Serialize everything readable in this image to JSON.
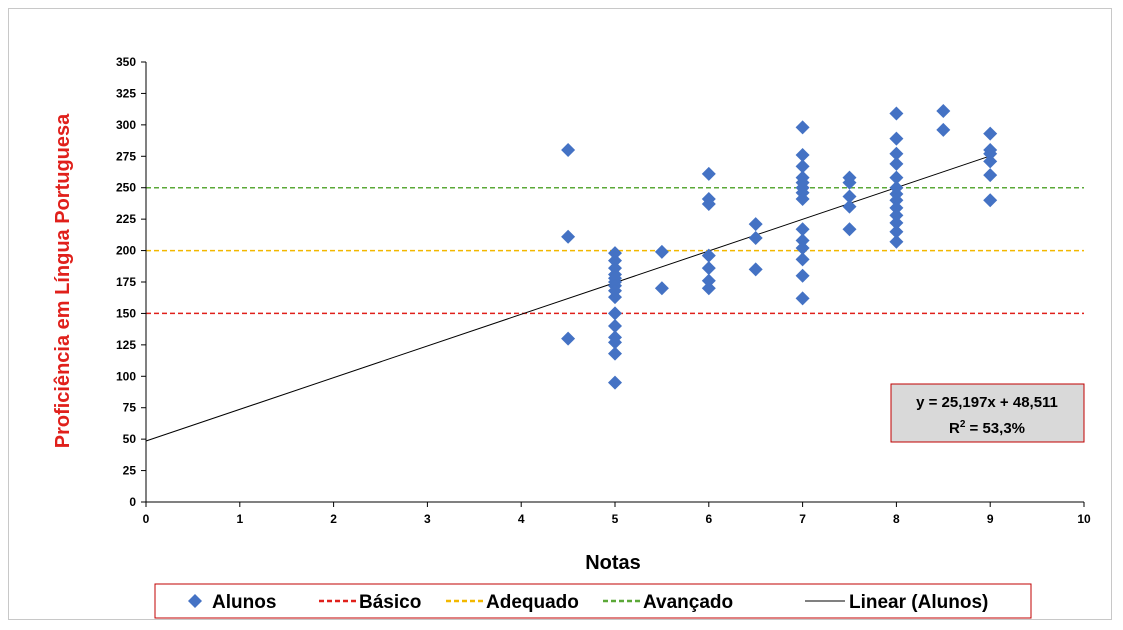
{
  "chart_data": {
    "type": "scatter",
    "xlabel": "Notas",
    "ylabel": "Proficiência  em  Língua Portuguesa",
    "xlim": [
      0,
      10
    ],
    "ylim": [
      0,
      350
    ],
    "x_ticks": [
      0,
      1,
      2,
      3,
      4,
      5,
      6,
      7,
      8,
      9,
      10
    ],
    "y_ticks": [
      0,
      25,
      50,
      75,
      100,
      125,
      150,
      175,
      200,
      225,
      250,
      275,
      300,
      325,
      350
    ],
    "grid": false,
    "legend_position": "bottom",
    "series": [
      {
        "name": "Alunos",
        "kind": "scatter",
        "marker": "diamond",
        "color": "#4472C4",
        "points": [
          [
            4.5,
            280
          ],
          [
            4.5,
            211
          ],
          [
            4.5,
            130
          ],
          [
            5,
            198
          ],
          [
            5,
            192
          ],
          [
            5,
            186
          ],
          [
            5,
            181
          ],
          [
            5,
            178
          ],
          [
            5,
            175
          ],
          [
            5,
            172
          ],
          [
            5,
            168
          ],
          [
            5,
            163
          ],
          [
            5,
            150
          ],
          [
            5,
            140
          ],
          [
            5,
            131
          ],
          [
            5,
            127
          ],
          [
            5,
            118
          ],
          [
            5,
            95
          ],
          [
            5.5,
            199
          ],
          [
            5.5,
            170
          ],
          [
            6,
            261
          ],
          [
            6,
            241
          ],
          [
            6,
            237
          ],
          [
            6,
            196
          ],
          [
            6,
            186
          ],
          [
            6,
            176
          ],
          [
            6,
            170
          ],
          [
            6.5,
            221
          ],
          [
            6.5,
            210
          ],
          [
            6.5,
            185
          ],
          [
            7,
            298
          ],
          [
            7,
            276
          ],
          [
            7,
            267
          ],
          [
            7,
            258
          ],
          [
            7,
            254
          ],
          [
            7,
            250
          ],
          [
            7,
            246
          ],
          [
            7,
            241
          ],
          [
            7,
            217
          ],
          [
            7,
            208
          ],
          [
            7,
            202
          ],
          [
            7,
            193
          ],
          [
            7,
            180
          ],
          [
            7,
            162
          ],
          [
            7.5,
            258
          ],
          [
            7.5,
            254
          ],
          [
            7.5,
            243
          ],
          [
            7.5,
            235
          ],
          [
            7.5,
            217
          ],
          [
            8,
            309
          ],
          [
            8,
            289
          ],
          [
            8,
            277
          ],
          [
            8,
            269
          ],
          [
            8,
            258
          ],
          [
            8,
            250
          ],
          [
            8,
            245
          ],
          [
            8,
            240
          ],
          [
            8,
            234
          ],
          [
            8,
            228
          ],
          [
            8,
            222
          ],
          [
            8,
            215
          ],
          [
            8,
            207
          ],
          [
            8.5,
            311
          ],
          [
            8.5,
            296
          ],
          [
            9,
            293
          ],
          [
            9,
            280
          ],
          [
            9,
            277
          ],
          [
            9,
            271
          ],
          [
            9,
            260
          ],
          [
            9,
            240
          ]
        ]
      },
      {
        "name": "Básico",
        "kind": "hline",
        "y": 150,
        "color": "#E0201B",
        "dash": true
      },
      {
        "name": "Adequado",
        "kind": "hline",
        "y": 200,
        "color": "#F2B800",
        "dash": true
      },
      {
        "name": "Avançado",
        "kind": "hline",
        "y": 250,
        "color": "#5BA838",
        "dash": true
      },
      {
        "name": "Linear (Alunos)",
        "kind": "trendline",
        "slope": 25.197,
        "intercept": 48.511,
        "color": "#000000",
        "dash": false
      }
    ],
    "trendline_box": {
      "equation": "y = 25,197x + 48,511",
      "r2_prefix": "R",
      "r2_sup": "2",
      "r2_value": " = 53,3%"
    }
  }
}
